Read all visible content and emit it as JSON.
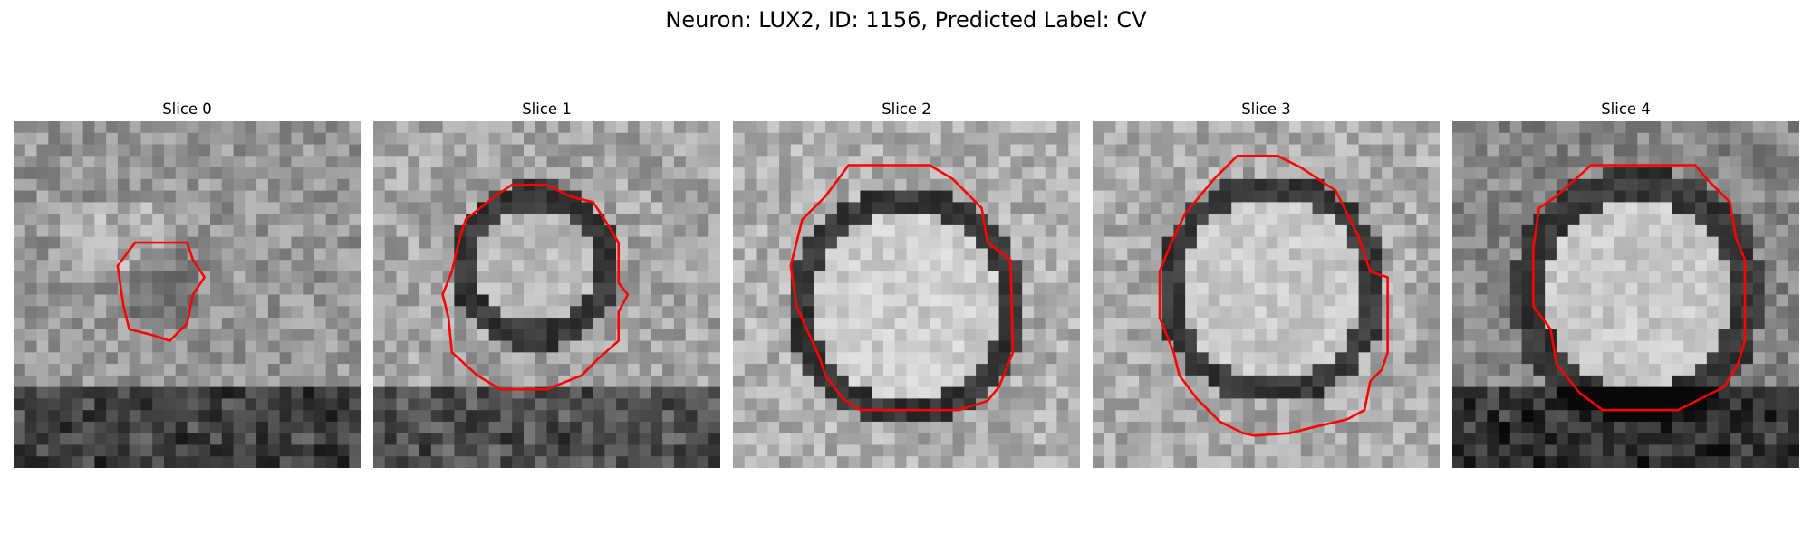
{
  "figure": {
    "title": "Neuron: LUX2, ID: 1156, Predicted Label: CV"
  },
  "panels": [
    {
      "title": "Slice 0"
    },
    {
      "title": "Slice 1"
    },
    {
      "title": "Slice 2"
    },
    {
      "title": "Slice 3"
    },
    {
      "title": "Slice 4"
    }
  ],
  "colors": {
    "contour": "#ff0000",
    "background": "#ffffff"
  }
}
